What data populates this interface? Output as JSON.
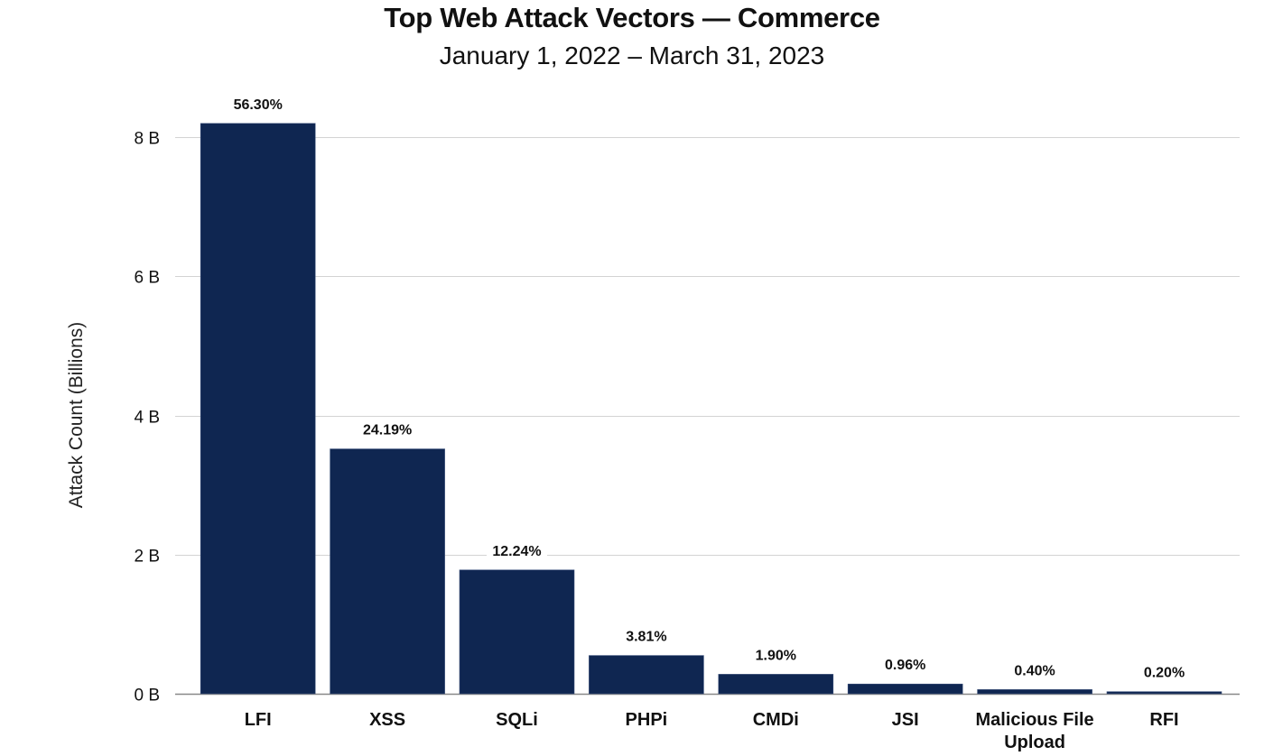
{
  "chart_data": {
    "type": "bar",
    "title": "Top Web Attack Vectors — Commerce",
    "subtitle": "January 1, 2022 – March 31, 2023",
    "xlabel": "",
    "ylabel": "Attack Count (Billions)",
    "ylim": [
      0,
      8.2
    ],
    "yticks": [
      0,
      2,
      4,
      6,
      8
    ],
    "ytick_labels": [
      "0 B",
      "2 B",
      "4 B",
      "6 B",
      "8 B"
    ],
    "grid": true,
    "legend": null,
    "bar_color": "#0f2651",
    "categories": [
      "LFI",
      "XSS",
      "SQLi",
      "PHPi",
      "CMDi",
      "JSI",
      "Malicious File Upload",
      "RFI"
    ],
    "category_lines": [
      [
        "LFI"
      ],
      [
        "XSS"
      ],
      [
        "SQLi"
      ],
      [
        "PHPi"
      ],
      [
        "CMDi"
      ],
      [
        "JSI"
      ],
      [
        "Malicious File",
        "Upload"
      ],
      [
        "RFI"
      ]
    ],
    "values": [
      8.2,
      3.52,
      1.78,
      0.55,
      0.28,
      0.14,
      0.06,
      0.03
    ],
    "data_labels": [
      "56.30%",
      "24.19%",
      "12.24%",
      "3.81%",
      "1.90%",
      "0.96%",
      "0.40%",
      "0.20%"
    ]
  }
}
